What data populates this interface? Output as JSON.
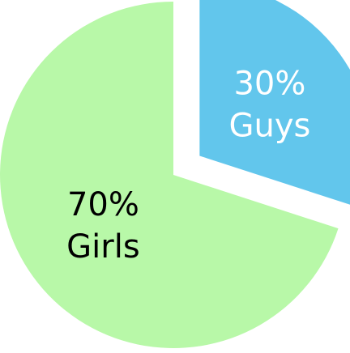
{
  "chart_data": {
    "type": "pie",
    "title": "",
    "slices": [
      {
        "category": "Guys",
        "value": 30,
        "color": "#62C6EC",
        "label_color": "#ffffff",
        "label_percent": "30%",
        "label_name": "Guys",
        "exploded": true
      },
      {
        "category": "Girls",
        "value": 70,
        "color": "#B8F8A8",
        "label_color": "#000000",
        "label_percent": "70%",
        "label_name": "Girls",
        "exploded": false
      }
    ],
    "start_angle": "top",
    "direction": "clockwise",
    "legend": "none"
  }
}
